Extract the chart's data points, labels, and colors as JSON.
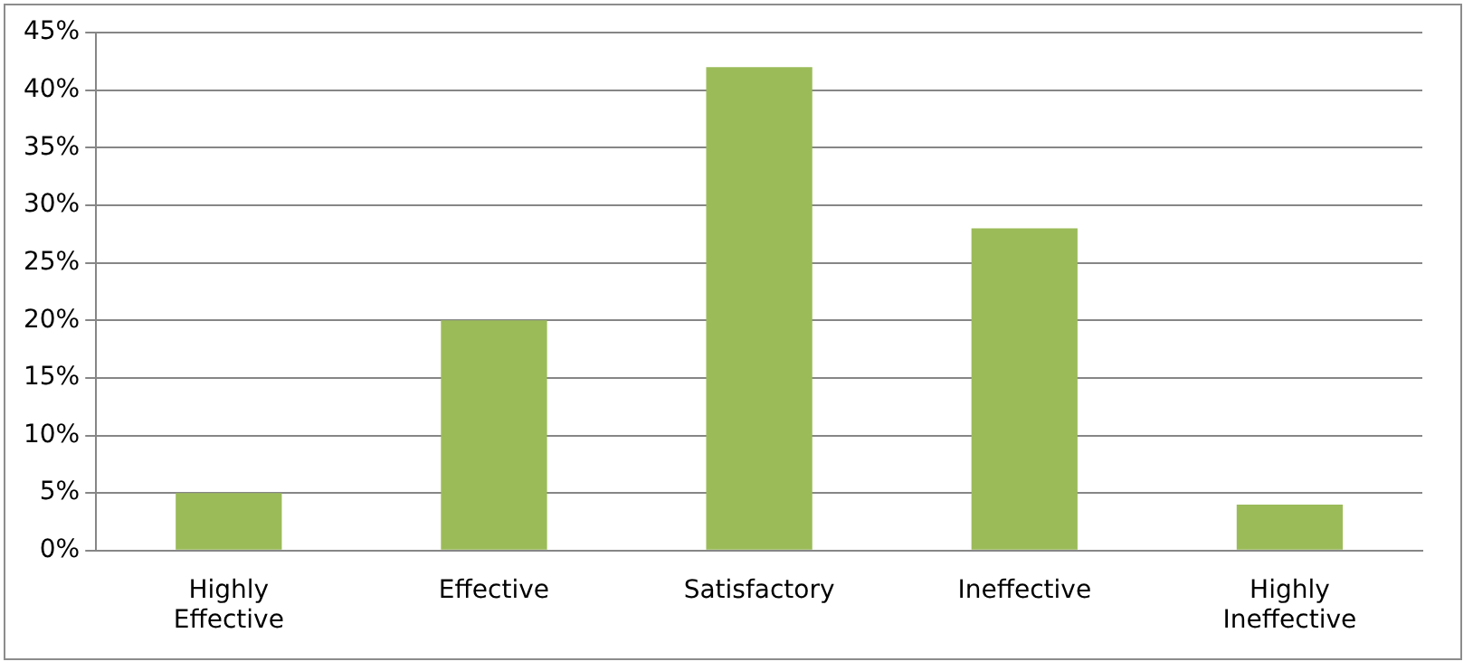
{
  "chart_data": {
    "type": "bar",
    "categories": [
      "Highly Effective",
      "Effective",
      "Satisfactory",
      "Ineffective",
      "Highly Ineffective"
    ],
    "values": [
      5,
      20,
      42,
      28,
      4
    ],
    "color": "#9bbb59",
    "ylim": [
      0,
      45
    ],
    "yticks": [
      {
        "value": 0,
        "label": "0%"
      },
      {
        "value": 5,
        "label": "5%"
      },
      {
        "value": 10,
        "label": "10%"
      },
      {
        "value": 15,
        "label": "15%"
      },
      {
        "value": 20,
        "label": "20%"
      },
      {
        "value": 25,
        "label": "25%"
      },
      {
        "value": 30,
        "label": "30%"
      },
      {
        "value": 35,
        "label": "35%"
      },
      {
        "value": 40,
        "label": "40%"
      },
      {
        "value": 45,
        "label": "45%"
      }
    ],
    "grid": "y",
    "legend": false
  }
}
